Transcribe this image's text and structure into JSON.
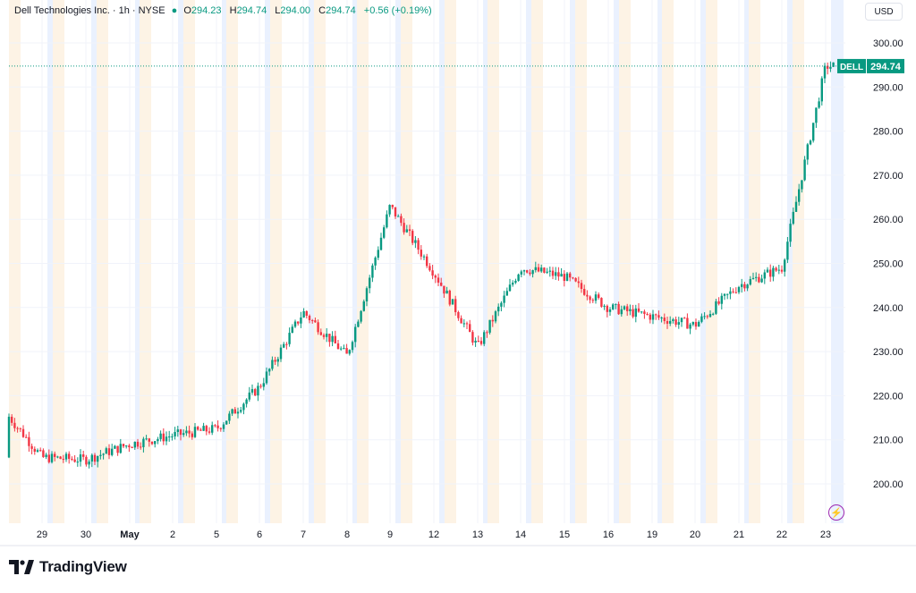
{
  "header": {
    "title": "Dell Technologies Inc. · 1h · NYSE",
    "o_label": "O",
    "o_value": "294.23",
    "h_label": "H",
    "h_value": "294.74",
    "l_label": "L",
    "l_value": "294.00",
    "c_label": "C",
    "c_value": "294.74",
    "change": "+0.56 (+0.19%)"
  },
  "currency": "USD",
  "last_price": {
    "symbol": "DELL",
    "value": "294.74"
  },
  "branding": {
    "name": "TradingView"
  },
  "colors": {
    "up": "#089981",
    "down": "#f23645",
    "premarket_band": "#fdf3e5",
    "postmarket_band": "#eaf1fe",
    "grid": "#f0f3fa",
    "accent": "#9c27b0"
  },
  "chart_data": {
    "type": "line",
    "title": "Dell Technologies Inc. · 1h · NYSE",
    "x_tick_labels": [
      "29",
      "30",
      "May",
      "2",
      "5",
      "6",
      "7",
      "8",
      "9",
      "12",
      "13",
      "14",
      "15",
      "16",
      "19",
      "20",
      "21",
      "22",
      "23"
    ],
    "y_tick_labels": [
      "300.00",
      "290.00",
      "280.00",
      "270.00",
      "260.00",
      "250.00",
      "240.00",
      "230.00",
      "220.00",
      "210.00",
      "200.00"
    ],
    "ylim": [
      193,
      305
    ],
    "grid": true,
    "series": [
      {
        "name": "DELL",
        "x": [
          "29",
          "30",
          "May",
          "2",
          "5",
          "6",
          "7",
          "8",
          "9",
          "12",
          "13",
          "14",
          "15",
          "16",
          "19",
          "20",
          "21",
          "22",
          "23"
        ],
        "values": [
          206,
          205.5,
          209,
          211,
          212.5,
          222,
          239,
          229,
          263,
          248,
          231,
          249,
          247,
          240,
          238,
          236,
          245,
          249,
          294.74
        ]
      }
    ],
    "last_value": 294.74
  }
}
